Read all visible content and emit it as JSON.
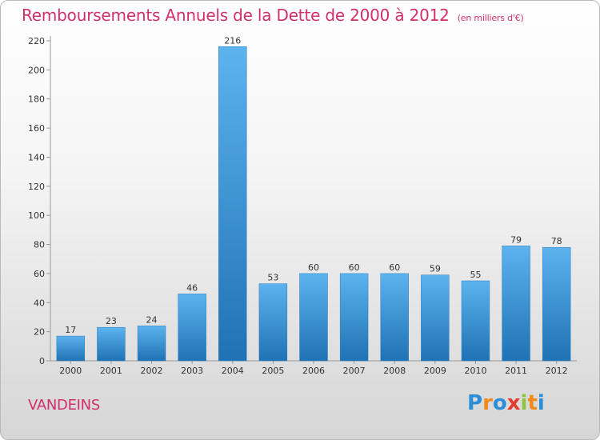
{
  "title": "Remboursements Annuels de la Dette de 2000 à 2012",
  "subtitle": "(en milliers d'€)",
  "commune": "VANDEINS",
  "logo": {
    "letters": [
      "P",
      "r",
      "o",
      "x",
      "i",
      "t",
      "i"
    ],
    "colors": [
      "#2b8fd8",
      "#f28a1c",
      "#2b8fd8",
      "#e53b2c",
      "#8cc63e",
      "#f28a1c",
      "#2b8fd8"
    ]
  },
  "colors": {
    "bar_light": "#5cb3ee",
    "bar_dark": "#1f72b4",
    "text": "#333333",
    "accent": "#d1306a"
  },
  "chart_data": {
    "type": "bar",
    "title": "Remboursements Annuels de la Dette de 2000 à 2012",
    "subtitle": "(en milliers d'€)",
    "xlabel": "",
    "ylabel": "",
    "categories": [
      "2000",
      "2001",
      "2002",
      "2003",
      "2004",
      "2005",
      "2006",
      "2007",
      "2008",
      "2009",
      "2010",
      "2011",
      "2012"
    ],
    "values": [
      17,
      23,
      24,
      46,
      216,
      53,
      60,
      60,
      60,
      59,
      55,
      79,
      78
    ],
    "data_labels": [
      "17",
      "23",
      "24",
      "46",
      "216",
      "53",
      "60",
      "60",
      "60",
      "59",
      "55",
      "79",
      "78"
    ],
    "ylim": [
      0,
      220
    ],
    "yticks": [
      0,
      20,
      40,
      60,
      80,
      100,
      120,
      140,
      160,
      180,
      200,
      220
    ],
    "ytick_labels": [
      "0",
      "20",
      "40",
      "60",
      "80",
      "100",
      "120",
      "140",
      "160",
      "180",
      "200",
      "220"
    ],
    "grid": false,
    "legend": "none"
  }
}
